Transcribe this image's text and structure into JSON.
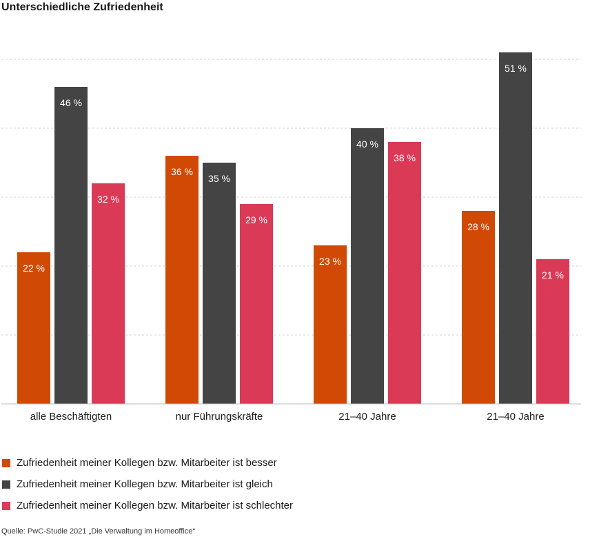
{
  "chart_data": {
    "type": "bar",
    "title": "Unterschiedliche Zufriedenheit",
    "categories": [
      "alle Beschäftigten",
      "nur Führungskräfte",
      "21–40 Jahre",
      "21–40 Jahre"
    ],
    "series": [
      {
        "name": "Zufriedenheit meiner Kollegen bzw. Mitarbeiter ist besser",
        "values": [
          22,
          36,
          23,
          28
        ],
        "color": "#d14a05"
      },
      {
        "name": "Zufriedenheit meiner Kollegen bzw. Mitarbeiter ist gleich",
        "values": [
          46,
          35,
          40,
          51
        ],
        "color": "#444444"
      },
      {
        "name": "Zufriedenheit meiner Kollegen bzw. Mitarbeiter ist schlechter",
        "values": [
          32,
          29,
          38,
          21
        ],
        "color": "#db3a57"
      }
    ],
    "value_suffix": " %",
    "ylim": [
      0,
      50
    ],
    "grid": true,
    "source": "Quelle: PwC-Studie 2021 „Die Verwaltung im Homeoffice“"
  }
}
